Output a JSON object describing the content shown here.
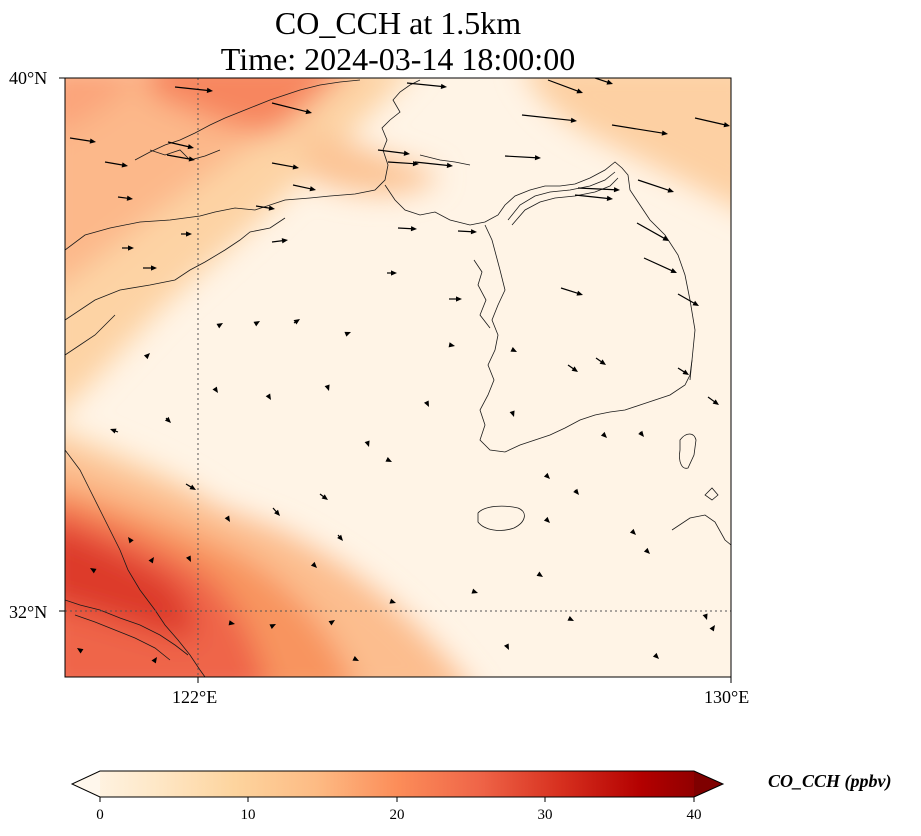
{
  "title": {
    "line1": "CO_CCH at 1.5km",
    "line2": "Time: 2024-03-14 18:00:00"
  },
  "map": {
    "lat_range": [
      31,
      40
    ],
    "lon_range": [
      120,
      130
    ],
    "lat_ticks": [
      "40°N",
      "32°N"
    ],
    "lon_ticks": [
      "122°E",
      "130°E"
    ],
    "gridlines": "dotted"
  },
  "colorbar": {
    "label": "CO_CCH (ppbv)",
    "ticks": [
      "0",
      "10",
      "20",
      "30",
      "40"
    ],
    "range": [
      0,
      40
    ],
    "extend": "both",
    "colormap": "OrRd",
    "colors": [
      "#fff7ec",
      "#fee8c8",
      "#fdd49e",
      "#fdbb84",
      "#fc8d59",
      "#ef6548",
      "#d7301f",
      "#b30000",
      "#7f0000"
    ]
  }
}
